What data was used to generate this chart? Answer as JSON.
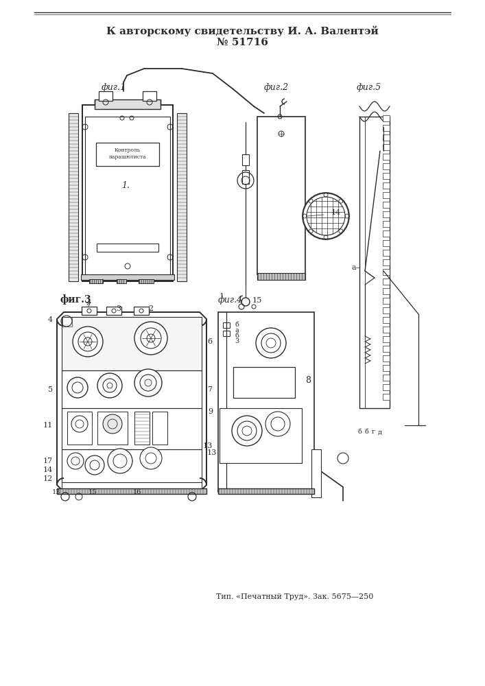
{
  "title_line1": "К авторскому свидетельству И. А. Валентэй",
  "title_line2": "№ 51716",
  "footer": "Тип. «Печатный Труд». Зак. 5675—250",
  "bg_color": "#ffffff",
  "line_color": "#2a2a2a"
}
